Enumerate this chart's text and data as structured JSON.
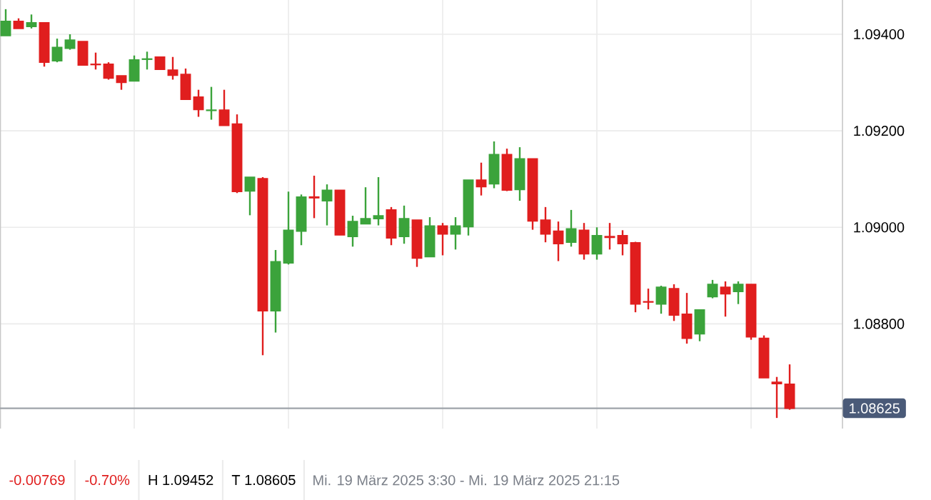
{
  "chart_data": {
    "type": "candlestick",
    "categories": [
      null,
      null,
      null,
      null,
      null,
      null,
      null,
      null,
      null,
      null,
      null,
      null,
      null,
      null,
      null,
      null,
      null,
      null,
      null,
      null,
      null,
      null,
      null,
      null,
      null,
      null,
      null,
      null,
      null,
      null,
      null,
      null,
      null,
      null,
      null,
      null,
      null,
      null,
      null,
      null,
      null,
      null,
      null,
      null,
      null,
      null,
      null,
      null,
      null,
      null,
      null,
      null,
      null,
      null,
      null,
      null,
      null,
      null,
      null,
      null,
      null,
      null
    ],
    "ohlc": [
      [
        1.09397,
        1.09452,
        1.09397,
        1.09427
      ],
      [
        1.09427,
        1.09433,
        1.09412,
        1.09412
      ],
      [
        1.09416,
        1.09441,
        1.09412,
        1.09424
      ],
      [
        1.09424,
        1.09424,
        1.09333,
        1.09342
      ],
      [
        1.09345,
        1.09391,
        1.09342,
        1.09373
      ],
      [
        1.09371,
        1.094,
        1.09368,
        1.09388
      ],
      [
        1.09385,
        1.09385,
        1.09336,
        1.09336
      ],
      [
        1.09338,
        1.09362,
        1.09327,
        1.09337
      ],
      [
        1.09338,
        1.09342,
        1.09306,
        1.09309
      ],
      [
        1.09314,
        1.09314,
        1.09285,
        1.093
      ],
      [
        1.09303,
        1.09356,
        1.09303,
        1.09347
      ],
      [
        1.09348,
        1.09364,
        1.09327,
        1.09349
      ],
      [
        1.09353,
        1.09353,
        1.09327,
        1.09327
      ],
      [
        1.09326,
        1.09353,
        1.09306,
        1.09315
      ],
      [
        1.09317,
        1.09329,
        1.09265,
        1.09265
      ],
      [
        1.0927,
        1.09285,
        1.09229,
        1.09244
      ],
      [
        1.09242,
        1.09291,
        1.09223,
        1.09243
      ],
      [
        1.09243,
        1.09285,
        1.09211,
        1.09211
      ],
      [
        1.09214,
        1.09234,
        1.09071,
        1.09074
      ],
      [
        1.09075,
        1.09104,
        1.09025,
        1.09104
      ],
      [
        1.09101,
        1.09104,
        1.08735,
        1.08827
      ],
      [
        1.08827,
        1.08953,
        1.08782,
        1.08929
      ],
      [
        1.08926,
        1.09074,
        1.08923,
        1.08994
      ],
      [
        1.08992,
        1.09068,
        1.08963,
        1.09063
      ],
      [
        1.09063,
        1.09107,
        1.09019,
        1.09061
      ],
      [
        1.09055,
        1.09089,
        1.09004,
        1.09077
      ],
      [
        1.09077,
        1.09077,
        1.08984,
        1.08984
      ],
      [
        1.08981,
        1.09024,
        1.0896,
        1.09012
      ],
      [
        1.09007,
        1.09083,
        1.09007,
        1.09018
      ],
      [
        1.09018,
        1.09104,
        1.09004,
        1.09024
      ],
      [
        1.09036,
        1.09042,
        1.08963,
        1.08978
      ],
      [
        1.08981,
        1.09045,
        1.08966,
        1.09018
      ],
      [
        1.09015,
        1.09015,
        1.08918,
        1.08936
      ],
      [
        1.08939,
        1.09021,
        1.08939,
        1.09003
      ],
      [
        1.09003,
        1.09009,
        1.08942,
        1.08986
      ],
      [
        1.08986,
        1.09021,
        1.08954,
        1.09003
      ],
      [
        1.09001,
        1.09098,
        1.08983,
        1.09098
      ],
      [
        1.09098,
        1.09134,
        1.09066,
        1.09084
      ],
      [
        1.0909,
        1.09178,
        1.09081,
        1.09151
      ],
      [
        1.09151,
        1.09163,
        1.09075,
        1.09077
      ],
      [
        1.09078,
        1.09166,
        1.09055,
        1.09142
      ],
      [
        1.09142,
        1.09142,
        1.08995,
        1.09013
      ],
      [
        1.09015,
        1.09042,
        1.08969,
        1.08986
      ],
      [
        1.08992,
        1.09012,
        1.0893,
        1.08966
      ],
      [
        1.08969,
        1.09036,
        1.0896,
        1.08997
      ],
      [
        1.08994,
        1.09009,
        1.08933,
        1.08945
      ],
      [
        1.08945,
        1.09,
        1.08933,
        1.08983
      ],
      [
        1.08981,
        1.09009,
        1.08954,
        1.08979
      ],
      [
        1.08983,
        1.08994,
        1.08942,
        1.08966
      ],
      [
        1.08968,
        1.0897,
        1.08824,
        1.08841
      ],
      [
        1.08846,
        1.08873,
        1.0883,
        1.08845
      ],
      [
        1.08841,
        1.08879,
        1.08821,
        1.08876
      ],
      [
        1.08873,
        1.08882,
        1.08806,
        1.08818
      ],
      [
        1.0882,
        1.08864,
        1.08759,
        1.0877
      ],
      [
        1.08779,
        1.08829,
        1.08764,
        1.08829
      ],
      [
        1.08856,
        1.08891,
        1.08853,
        1.08882
      ],
      [
        1.08876,
        1.08888,
        1.08815,
        1.08862
      ],
      [
        1.08867,
        1.08888,
        1.08841,
        1.08882
      ],
      [
        1.08882,
        1.08882,
        1.08767,
        1.08773
      ],
      [
        1.0877,
        1.08776,
        1.08688,
        1.08688
      ],
      [
        1.08679,
        1.0869,
        1.08605,
        1.08676
      ],
      [
        1.08675,
        1.08716,
        1.08622,
        1.08625
      ]
    ],
    "ylim": [
      1.08583,
      1.09471
    ],
    "yticks": [
      {
        "value": 1.088,
        "label": "1.08800"
      },
      {
        "value": 1.09,
        "label": "1.09000"
      },
      {
        "value": 1.092,
        "label": "1.09200"
      },
      {
        "value": 1.094,
        "label": "1.09400"
      }
    ],
    "grid": true,
    "ref_lines": [
      {
        "axis": "y",
        "value": 1.08625,
        "label": "1.08625",
        "color": "#9ea3aa"
      }
    ],
    "annotations": [
      "-0.00769",
      "-0.70%",
      "H 1.09452",
      "T 1.08605",
      "Mi. 19 März 2025 3:30 - Mi. 19 März 2025 21:15"
    ]
  }
}
